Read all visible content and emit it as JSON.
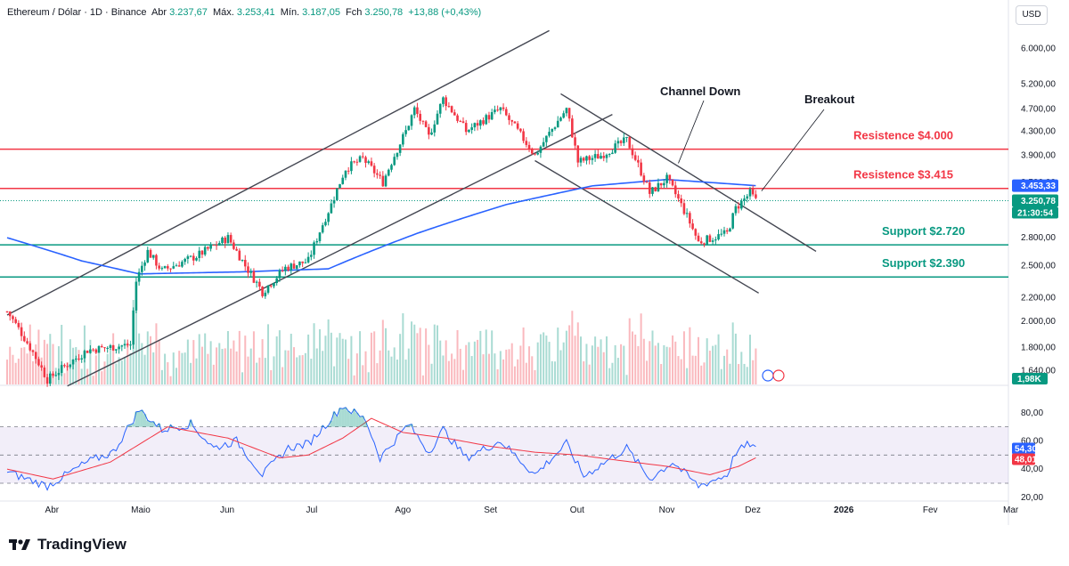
{
  "header": {
    "symbol": "Ethereum / Dólar · 1D · Binance",
    "open_label": "Abr",
    "open": "3.237,67",
    "high_label": "Máx.",
    "high": "3.253,41",
    "low_label": "Mín.",
    "low": "3.187,05",
    "close_label": "Fch",
    "close": "3.250,78",
    "change": "+13,88 (+0,43%)"
  },
  "currency_button": "USD",
  "brand": "TradingView",
  "colors": {
    "up": "#089981",
    "down": "#f23645",
    "resistance": "#f23645",
    "support": "#089981",
    "ma": "#2962ff",
    "channel": "#434651",
    "rsi": "#2962ff",
    "rsi_ma": "#f23645",
    "rsi_band": "#7e57c2"
  },
  "chart_data": [
    {
      "type": "candlestick",
      "title": "Ethereum / Dólar · 1D · Binance",
      "xlabel": "",
      "ylabel": "",
      "scale": "log",
      "ylim": [
        1550,
        6600
      ],
      "y_ticks": [
        "6.000,00",
        "5.200,00",
        "4.700,00",
        "4.300,00",
        "3.900,00",
        "3.500,00",
        "3.250,78",
        "2.800,00",
        "2.500,00",
        "2.200,00",
        "2.000,00",
        "1.800,00",
        "1.640,00"
      ],
      "y_tick_values": [
        6000,
        5200,
        4700,
        4300,
        3900,
        3500,
        3250.78,
        2800,
        2500,
        2200,
        2000,
        1800,
        1640
      ],
      "x_ticks": [
        "Abr",
        "Maio",
        "Jun",
        "Jul",
        "Ago",
        "Set",
        "Out",
        "Nov",
        "Dez",
        "2026",
        "Fev",
        "Mar"
      ],
      "x_tick_dates": [
        "2025-04-01",
        "2025-05-01",
        "2025-06-01",
        "2025-07-01",
        "2025-08-01",
        "2025-09-01",
        "2025-10-01",
        "2025-11-01",
        "2025-12-01",
        "2026-01-01",
        "2026-02-01",
        "2026-03-01"
      ],
      "price_anchors": [
        {
          "date": "2025-03-25",
          "price": 2080
        },
        {
          "date": "2025-04-02",
          "price": 1800
        },
        {
          "date": "2025-04-08",
          "price": 1580
        },
        {
          "date": "2025-04-22",
          "price": 1780
        },
        {
          "date": "2025-05-07",
          "price": 1820
        },
        {
          "date": "2025-05-09",
          "price": 2350
        },
        {
          "date": "2025-05-13",
          "price": 2650
        },
        {
          "date": "2025-05-18",
          "price": 2450
        },
        {
          "date": "2025-05-30",
          "price": 2600
        },
        {
          "date": "2025-06-10",
          "price": 2800
        },
        {
          "date": "2025-06-16",
          "price": 2500
        },
        {
          "date": "2025-06-22",
          "price": 2250
        },
        {
          "date": "2025-06-30",
          "price": 2480
        },
        {
          "date": "2025-07-08",
          "price": 2550
        },
        {
          "date": "2025-07-16",
          "price": 3200
        },
        {
          "date": "2025-07-21",
          "price": 3700
        },
        {
          "date": "2025-07-27",
          "price": 3850
        },
        {
          "date": "2025-08-03",
          "price": 3500
        },
        {
          "date": "2025-08-11",
          "price": 4300
        },
        {
          "date": "2025-08-14",
          "price": 4700
        },
        {
          "date": "2025-08-19",
          "price": 4200
        },
        {
          "date": "2025-08-24",
          "price": 4900
        },
        {
          "date": "2025-09-01",
          "price": 4300
        },
        {
          "date": "2025-09-13",
          "price": 4700
        },
        {
          "date": "2025-09-25",
          "price": 3900
        },
        {
          "date": "2025-10-06",
          "price": 4700
        },
        {
          "date": "2025-10-10",
          "price": 3800
        },
        {
          "date": "2025-10-18",
          "price": 3900
        },
        {
          "date": "2025-10-27",
          "price": 4150
        },
        {
          "date": "2025-11-04",
          "price": 3350
        },
        {
          "date": "2025-11-10",
          "price": 3550
        },
        {
          "date": "2025-11-17",
          "price": 3050
        },
        {
          "date": "2025-11-21",
          "price": 2750
        },
        {
          "date": "2025-12-01",
          "price": 2850
        },
        {
          "date": "2025-12-04",
          "price": 3150
        },
        {
          "date": "2025-12-09",
          "price": 3350
        },
        {
          "date": "2025-12-11",
          "price": 3250.78
        }
      ],
      "moving_average": {
        "name": "",
        "anchors": [
          {
            "date": "2025-03-25",
            "price": 2800
          },
          {
            "date": "2025-04-20",
            "price": 2550
          },
          {
            "date": "2025-05-10",
            "price": 2420
          },
          {
            "date": "2025-06-15",
            "price": 2440
          },
          {
            "date": "2025-07-15",
            "price": 2470
          },
          {
            "date": "2025-08-15",
            "price": 2850
          },
          {
            "date": "2025-09-15",
            "price": 3200
          },
          {
            "date": "2025-10-15",
            "price": 3450
          },
          {
            "date": "2025-11-10",
            "price": 3540
          },
          {
            "date": "2025-12-11",
            "price": 3453.33
          }
        ]
      },
      "levels": [
        {
          "label": "Resistence $4.000",
          "price": 4000,
          "kind": "resistance"
        },
        {
          "label": "Resistence $3.415",
          "price": 3415,
          "kind": "resistance"
        },
        {
          "label": "Support $2.720",
          "price": 2720,
          "kind": "support"
        },
        {
          "label": "Support $2.390",
          "price": 2390,
          "kind": "support"
        }
      ],
      "channels": [
        {
          "name": "channel-up-upper",
          "from": {
            "date": "2025-03-25",
            "price": 2050
          },
          "to": {
            "date": "2025-09-30",
            "price": 6450
          }
        },
        {
          "name": "channel-up-lower",
          "from": {
            "date": "2025-04-15",
            "price": 1540
          },
          "to": {
            "date": "2025-10-22",
            "price": 4600
          }
        },
        {
          "name": "channel-down-upper",
          "from": {
            "date": "2025-10-04",
            "price": 5000
          },
          "to": {
            "date": "2026-01-01",
            "price": 2650
          }
        },
        {
          "name": "channel-down-lower",
          "from": {
            "date": "2025-09-25",
            "price": 3820
          },
          "to": {
            "date": "2025-12-12",
            "price": 2240
          }
        }
      ],
      "annotations": [
        {
          "text": "Channel Down",
          "target": {
            "date": "2025-11-14",
            "price": 3780
          }
        },
        {
          "text": "Breakout",
          "target": {
            "date": "2025-12-13",
            "price": 3380
          }
        }
      ],
      "price_tags": [
        {
          "label": "3.453,33",
          "price": 3453.33,
          "color": "#2962ff"
        },
        {
          "label": "3.250,78",
          "price": 3250.78,
          "color": "#089981"
        }
      ],
      "countdown": "21:30:54",
      "volume_tag": "1,98K"
    },
    {
      "type": "line",
      "title": "",
      "ylim": [
        18,
        95
      ],
      "y_ticks": [
        "80,00",
        "60,00",
        "40,00",
        "20,00"
      ],
      "y_tick_values": [
        80,
        60,
        40,
        20
      ],
      "band": [
        30,
        70
      ],
      "midline": 50,
      "rsi_anchors": [
        {
          "date": "2025-03-25",
          "v": 38
        },
        {
          "date": "2025-04-08",
          "v": 28
        },
        {
          "date": "2025-04-22",
          "v": 45
        },
        {
          "date": "2025-05-01",
          "v": 52
        },
        {
          "date": "2025-05-10",
          "v": 82
        },
        {
          "date": "2025-05-18",
          "v": 68
        },
        {
          "date": "2025-05-28",
          "v": 72
        },
        {
          "date": "2025-06-05",
          "v": 55
        },
        {
          "date": "2025-06-13",
          "v": 60
        },
        {
          "date": "2025-06-22",
          "v": 36
        },
        {
          "date": "2025-07-01",
          "v": 55
        },
        {
          "date": "2025-07-08",
          "v": 58
        },
        {
          "date": "2025-07-20",
          "v": 85
        },
        {
          "date": "2025-07-28",
          "v": 75
        },
        {
          "date": "2025-08-02",
          "v": 48
        },
        {
          "date": "2025-08-12",
          "v": 72
        },
        {
          "date": "2025-08-19",
          "v": 52
        },
        {
          "date": "2025-08-24",
          "v": 68
        },
        {
          "date": "2025-09-01",
          "v": 48
        },
        {
          "date": "2025-09-13",
          "v": 60
        },
        {
          "date": "2025-09-25",
          "v": 36
        },
        {
          "date": "2025-10-06",
          "v": 58
        },
        {
          "date": "2025-10-12",
          "v": 35
        },
        {
          "date": "2025-10-27",
          "v": 55
        },
        {
          "date": "2025-11-04",
          "v": 33
        },
        {
          "date": "2025-11-12",
          "v": 45
        },
        {
          "date": "2025-11-21",
          "v": 28
        },
        {
          "date": "2025-12-01",
          "v": 36
        },
        {
          "date": "2025-12-04",
          "v": 52
        },
        {
          "date": "2025-12-09",
          "v": 58
        },
        {
          "date": "2025-12-11",
          "v": 54.3
        }
      ],
      "rsi_ma_anchors": [
        {
          "date": "2025-03-25",
          "v": 40
        },
        {
          "date": "2025-04-10",
          "v": 33
        },
        {
          "date": "2025-04-30",
          "v": 45
        },
        {
          "date": "2025-05-20",
          "v": 70
        },
        {
          "date": "2025-06-10",
          "v": 62
        },
        {
          "date": "2025-06-28",
          "v": 48
        },
        {
          "date": "2025-07-08",
          "v": 50
        },
        {
          "date": "2025-07-20",
          "v": 62
        },
        {
          "date": "2025-07-30",
          "v": 76
        },
        {
          "date": "2025-08-10",
          "v": 66
        },
        {
          "date": "2025-08-25",
          "v": 62
        },
        {
          "date": "2025-09-10",
          "v": 56
        },
        {
          "date": "2025-09-25",
          "v": 52
        },
        {
          "date": "2025-10-10",
          "v": 50
        },
        {
          "date": "2025-10-25",
          "v": 46
        },
        {
          "date": "2025-11-10",
          "v": 42
        },
        {
          "date": "2025-11-25",
          "v": 36
        },
        {
          "date": "2025-12-05",
          "v": 42
        },
        {
          "date": "2025-12-11",
          "v": 48.01
        }
      ],
      "rsi_tag": "54,30",
      "rsi_ma_tag": "48,01"
    }
  ]
}
